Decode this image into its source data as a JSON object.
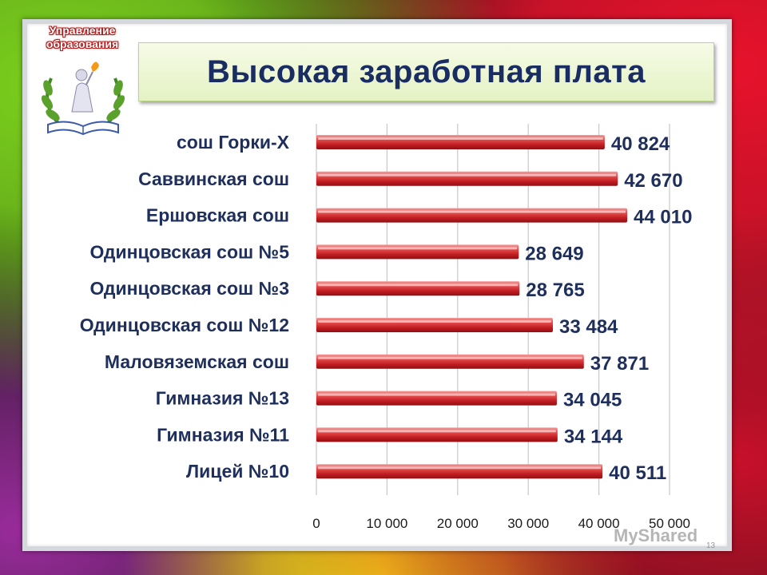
{
  "logo": {
    "text": "Управление\nобразования",
    "icon": "education-emblem-icon"
  },
  "title": "Высокая заработная плата",
  "colors": {
    "bar": "#c8282a",
    "bar_highlight": "#f07070",
    "text": "#1f2f5c",
    "title_bg": "#e8f4cc"
  },
  "chart_data": {
    "type": "bar",
    "orientation": "horizontal",
    "title": "Высокая заработная плата",
    "categories": [
      "сош Горки-Х",
      "Саввинская сош",
      "Ершовская сош",
      "Одинцовская сош №5",
      "Одинцовская сош №3",
      "Одинцовская сош №12",
      "Маловяземская сош",
      "Гимназия №13",
      "Гимназия №11",
      "Лицей №10"
    ],
    "values": [
      40824,
      42670,
      44010,
      28649,
      28765,
      33484,
      37871,
      34045,
      34144,
      40511
    ],
    "value_labels": [
      "40 824",
      "42 670",
      "44 010",
      "28 649",
      "28 765",
      "33 484",
      "37 871",
      "34 045",
      "34 144",
      "40 511"
    ],
    "x_ticks": [
      0,
      10000,
      20000,
      30000,
      40000,
      50000
    ],
    "x_tick_labels": [
      "0",
      "10 000",
      "20 000",
      "30 000",
      "40 000",
      "50 000"
    ],
    "xlim": [
      0,
      50000
    ],
    "xlabel": "",
    "ylabel": "",
    "grid": true,
    "legend": "none"
  },
  "watermark": "MyShared",
  "slide_number": "13"
}
